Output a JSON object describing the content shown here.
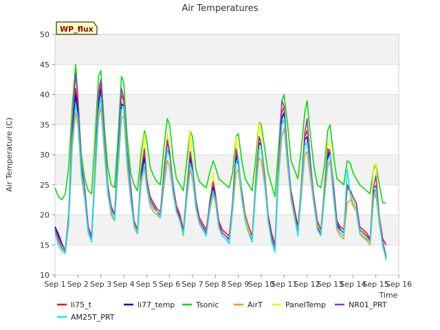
{
  "chart_data": {
    "type": "line",
    "title": "Air Temperatures",
    "xlabel": "Time",
    "ylabel": "Air Temperature (C)",
    "badge": "WP_flux",
    "xlim": [
      1,
      16
    ],
    "ylim": [
      10,
      50
    ],
    "x_ticks": [
      1,
      2,
      3,
      4,
      5,
      6,
      7,
      8,
      9,
      10,
      11,
      12,
      13,
      14,
      15,
      16
    ],
    "x_tick_labels": [
      "Sep 1",
      "Sep 2",
      "Sep 3",
      "Sep 4",
      "Sep 5",
      "Sep 6",
      "Sep 7",
      "Sep 8",
      "Sep 9",
      "Sep 10",
      "Sep 11",
      "Sep 12",
      "Sep 13",
      "Sep 14",
      "Sep 15",
      "Sep 16"
    ],
    "y_ticks": [
      10,
      15,
      20,
      25,
      30,
      35,
      40,
      45,
      50
    ],
    "y_tick_labels": [
      "10",
      "15",
      "20",
      "25",
      "30",
      "35",
      "40",
      "45",
      "50"
    ],
    "grid": true,
    "legend_position": "bottom",
    "x": [
      1.0,
      1.15,
      1.3,
      1.45,
      1.6,
      1.75,
      1.9,
      2.0,
      2.15,
      2.3,
      2.45,
      2.6,
      2.75,
      2.9,
      3.0,
      3.15,
      3.3,
      3.45,
      3.6,
      3.75,
      3.9,
      4.0,
      4.15,
      4.3,
      4.45,
      4.6,
      4.75,
      4.9,
      5.0,
      5.15,
      5.3,
      5.45,
      5.6,
      5.75,
      5.9,
      6.0,
      6.15,
      6.3,
      6.45,
      6.6,
      6.75,
      6.9,
      7.0,
      7.15,
      7.3,
      7.45,
      7.6,
      7.75,
      7.9,
      8.0,
      8.15,
      8.3,
      8.45,
      8.6,
      8.75,
      8.9,
      9.0,
      9.15,
      9.3,
      9.45,
      9.6,
      9.75,
      9.9,
      10.0,
      10.15,
      10.3,
      10.45,
      10.6,
      10.75,
      10.9,
      11.0,
      11.15,
      11.3,
      11.45,
      11.6,
      11.75,
      11.9,
      12.0,
      12.15,
      12.3,
      12.45,
      12.6,
      12.75,
      12.9,
      13.0,
      13.15,
      13.3,
      13.45,
      13.6,
      13.75,
      13.9,
      14.0,
      14.15,
      14.3,
      14.45,
      14.6,
      14.75,
      14.9,
      15.0,
      15.15,
      15.3,
      15.45
    ],
    "series": [
      {
        "name": "li75_t",
        "color": "#ff0000",
        "values": [
          18.0,
          16.5,
          15.0,
          14.2,
          20.0,
          34.0,
          41.0,
          38.0,
          28.0,
          24.0,
          18.0,
          16.5,
          28.0,
          40.0,
          42.0,
          33.0,
          25.0,
          21.0,
          20.0,
          30.0,
          40.0,
          39.0,
          30.0,
          24.0,
          19.0,
          17.5,
          27.0,
          30.0,
          26.5,
          23.0,
          22.0,
          21.0,
          20.5,
          27.0,
          32.0,
          30.5,
          25.0,
          21.5,
          20.0,
          17.5,
          24.0,
          30.0,
          28.0,
          22.5,
          19.5,
          18.5,
          17.5,
          22.0,
          25.0,
          23.5,
          19.0,
          17.5,
          17.0,
          16.5,
          22.0,
          30.0,
          29.0,
          24.0,
          20.0,
          18.0,
          16.5,
          25.0,
          33.0,
          32.0,
          27.0,
          20.0,
          17.0,
          15.0,
          28.0,
          37.0,
          38.0,
          30.0,
          24.0,
          21.0,
          18.0,
          25.0,
          33.0,
          34.0,
          28.0,
          23.0,
          19.0,
          17.5,
          24.0,
          30.0,
          31.0,
          25.0,
          19.0,
          18.0,
          17.5,
          25.0,
          24.0,
          23.0,
          22.0,
          18.0,
          17.5,
          17.0,
          16.0,
          24.5,
          24.8,
          20.0,
          16.0,
          15.0
        ]
      },
      {
        "name": "li77_temp",
        "color": "#0000cc",
        "values": [
          18.0,
          16.8,
          15.2,
          14.0,
          19.5,
          33.0,
          40.0,
          37.0,
          27.5,
          23.5,
          17.5,
          16.0,
          27.0,
          38.5,
          41.0,
          32.0,
          24.5,
          20.5,
          19.5,
          29.0,
          38.5,
          38.0,
          29.0,
          23.5,
          18.5,
          17.0,
          26.0,
          29.5,
          26.0,
          22.5,
          21.5,
          20.5,
          20.0,
          26.0,
          31.0,
          30.0,
          24.5,
          21.0,
          19.5,
          17.0,
          23.5,
          29.5,
          27.5,
          22.0,
          19.0,
          18.0,
          17.0,
          21.5,
          24.5,
          23.0,
          18.5,
          17.0,
          16.5,
          16.0,
          21.5,
          29.5,
          28.5,
          23.5,
          19.5,
          17.5,
          16.0,
          24.5,
          32.0,
          31.5,
          26.5,
          19.5,
          16.5,
          14.5,
          27.5,
          36.0,
          37.0,
          29.5,
          23.5,
          20.5,
          17.5,
          24.5,
          32.5,
          33.0,
          27.5,
          22.5,
          18.5,
          17.0,
          23.5,
          29.5,
          30.5,
          24.5,
          18.5,
          17.5,
          17.0,
          24.5,
          23.5,
          22.5,
          21.5,
          17.5,
          17.0,
          16.5,
          15.5,
          24.0,
          24.2,
          19.5,
          15.5,
          13.0
        ]
      },
      {
        "name": "Tsonic",
        "color": "#00dd00",
        "values": [
          24.5,
          23.0,
          22.5,
          23.5,
          28.0,
          38.0,
          45.0,
          40.0,
          30.0,
          26.0,
          24.0,
          23.5,
          33.0,
          43.0,
          44.0,
          35.0,
          28.0,
          25.0,
          24.5,
          33.0,
          43.0,
          42.0,
          33.0,
          27.0,
          25.0,
          24.0,
          30.0,
          34.0,
          32.5,
          28.0,
          26.5,
          25.5,
          25.0,
          31.0,
          36.0,
          35.0,
          29.5,
          26.0,
          25.0,
          24.0,
          29.0,
          34.0,
          33.0,
          27.5,
          25.5,
          25.0,
          24.5,
          27.0,
          29.0,
          28.0,
          26.0,
          25.5,
          25.0,
          24.5,
          27.0,
          33.0,
          33.5,
          29.0,
          26.0,
          25.0,
          24.0,
          29.0,
          35.5,
          35.0,
          31.0,
          27.0,
          25.0,
          23.0,
          31.0,
          39.0,
          40.0,
          35.0,
          29.0,
          27.5,
          26.0,
          31.0,
          37.0,
          39.0,
          33.0,
          28.0,
          25.0,
          24.5,
          28.0,
          34.0,
          35.0,
          30.0,
          26.0,
          25.5,
          25.0,
          29.0,
          28.5,
          27.0,
          26.0,
          25.0,
          24.5,
          24.0,
          23.5,
          27.5,
          28.5,
          25.0,
          22.0,
          22.0
        ]
      },
      {
        "name": "AirT",
        "color": "#ff9900",
        "values": [
          17.0,
          15.5,
          14.5,
          13.8,
          18.5,
          31.0,
          37.0,
          35.0,
          26.5,
          22.5,
          17.0,
          15.8,
          26.0,
          36.0,
          38.0,
          30.5,
          23.5,
          20.0,
          19.0,
          27.5,
          36.0,
          36.5,
          28.0,
          22.5,
          18.0,
          16.8,
          25.0,
          28.0,
          24.5,
          21.5,
          20.5,
          20.0,
          19.5,
          24.5,
          29.0,
          28.0,
          23.5,
          20.5,
          19.0,
          16.5,
          22.5,
          27.5,
          26.0,
          21.0,
          18.5,
          17.5,
          16.5,
          20.5,
          23.5,
          22.0,
          17.8,
          16.5,
          16.0,
          15.2,
          20.5,
          27.0,
          27.5,
          22.5,
          19.0,
          17.0,
          15.5,
          23.5,
          29.5,
          29.0,
          25.0,
          19.0,
          16.0,
          14.2,
          26.0,
          33.0,
          34.5,
          28.0,
          22.5,
          19.5,
          16.8,
          23.0,
          30.0,
          30.5,
          26.0,
          21.5,
          18.0,
          16.5,
          22.5,
          28.0,
          29.0,
          23.0,
          17.5,
          16.5,
          16.0,
          22.0,
          22.5,
          21.5,
          20.5,
          16.8,
          16.2,
          15.8,
          15.0,
          22.5,
          23.5,
          18.5,
          14.8,
          12.5
        ]
      },
      {
        "name": "PanelTemp",
        "color": "#ffee00",
        "values": [
          17.5,
          16.0,
          14.8,
          14.0,
          20.5,
          36.0,
          43.0,
          40.0,
          29.0,
          24.0,
          17.5,
          16.2,
          29.0,
          41.0,
          42.5,
          34.0,
          25.5,
          20.5,
          19.5,
          31.0,
          40.5,
          40.0,
          31.0,
          23.5,
          18.5,
          17.2,
          28.0,
          33.5,
          27.0,
          22.0,
          21.0,
          20.5,
          20.0,
          28.0,
          33.5,
          31.5,
          25.0,
          21.0,
          19.5,
          17.0,
          24.5,
          34.0,
          28.5,
          22.0,
          19.0,
          18.0,
          17.0,
          22.5,
          27.0,
          24.0,
          18.5,
          17.0,
          16.5,
          15.8,
          22.5,
          33.0,
          29.5,
          23.5,
          19.5,
          17.5,
          16.0,
          26.0,
          35.5,
          32.5,
          27.0,
          19.5,
          16.5,
          14.5,
          29.5,
          38.5,
          38.5,
          30.0,
          23.5,
          20.0,
          17.5,
          25.5,
          34.5,
          35.0,
          28.5,
          22.5,
          18.5,
          17.0,
          25.0,
          32.0,
          31.5,
          24.0,
          18.0,
          17.0,
          16.5,
          24.5,
          23.5,
          22.5,
          21.5,
          17.5,
          16.8,
          16.2,
          15.5,
          28.0,
          28.5,
          20.0,
          15.2,
          12.8
        ]
      },
      {
        "name": "NR01_PRT",
        "color": "#9933cc",
        "values": [
          17.5,
          16.0,
          14.5,
          13.9,
          20.0,
          35.0,
          43.5,
          39.5,
          28.5,
          24.5,
          18.0,
          16.0,
          28.0,
          40.5,
          42.5,
          33.5,
          25.0,
          21.5,
          20.0,
          30.5,
          41.0,
          39.5,
          30.5,
          25.0,
          19.0,
          17.0,
          27.0,
          31.0,
          26.0,
          22.5,
          21.5,
          20.5,
          20.0,
          27.0,
          32.5,
          30.5,
          25.0,
          21.0,
          19.5,
          17.0,
          24.0,
          30.5,
          28.0,
          22.5,
          19.0,
          18.0,
          17.0,
          22.0,
          25.5,
          23.5,
          18.5,
          17.0,
          16.5,
          15.8,
          22.0,
          31.0,
          29.0,
          23.5,
          19.0,
          17.0,
          15.8,
          25.0,
          33.0,
          31.5,
          26.5,
          19.5,
          16.5,
          14.5,
          28.5,
          39.0,
          38.0,
          30.0,
          23.5,
          20.5,
          17.0,
          25.0,
          33.5,
          36.0,
          28.5,
          22.5,
          18.0,
          16.8,
          24.0,
          31.0,
          30.5,
          24.0,
          18.0,
          17.5,
          17.0,
          24.5,
          24.0,
          23.0,
          22.0,
          17.5,
          17.0,
          16.5,
          15.8,
          24.5,
          26.5,
          19.5,
          15.5,
          12.5
        ]
      },
      {
        "name": "AM25T_PRT",
        "color": "#00eeff",
        "values": [
          17.0,
          15.0,
          14.0,
          13.6,
          19.0,
          32.0,
          38.5,
          36.0,
          27.0,
          23.0,
          17.0,
          15.5,
          27.0,
          37.0,
          39.5,
          31.5,
          24.0,
          20.5,
          19.0,
          28.5,
          37.5,
          38.0,
          29.0,
          23.0,
          18.5,
          17.0,
          25.5,
          28.5,
          25.0,
          22.0,
          21.0,
          20.5,
          19.5,
          25.5,
          31.0,
          29.5,
          24.0,
          20.5,
          19.0,
          16.8,
          23.0,
          28.5,
          27.0,
          21.5,
          18.5,
          17.5,
          16.5,
          21.0,
          24.0,
          22.5,
          18.0,
          16.5,
          16.0,
          15.2,
          21.0,
          28.5,
          29.5,
          23.0,
          19.0,
          17.0,
          15.5,
          24.0,
          31.0,
          31.0,
          25.5,
          19.0,
          15.5,
          13.8,
          27.0,
          35.0,
          36.0,
          29.0,
          23.0,
          20.0,
          16.5,
          24.0,
          31.5,
          32.0,
          27.0,
          22.0,
          17.5,
          16.5,
          23.0,
          29.0,
          30.0,
          23.5,
          18.0,
          17.0,
          16.5,
          27.5,
          23.0,
          22.0,
          21.0,
          17.0,
          16.5,
          16.0,
          15.5,
          23.0,
          24.5,
          19.0,
          15.0,
          12.5
        ]
      }
    ]
  }
}
